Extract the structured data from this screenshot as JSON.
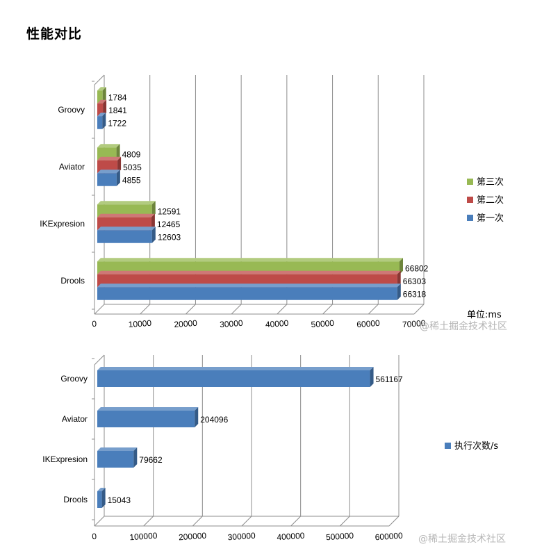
{
  "page": {
    "title": "性能对比"
  },
  "watermark": "@稀土掘金技术社区",
  "colors": {
    "blue": "#4a7ebb",
    "red": "#be4b48",
    "green": "#98b954",
    "grid": "#8c8c8c"
  },
  "chart_data": [
    {
      "type": "bar",
      "orientation": "horizontal",
      "style": "3d",
      "unit_label": "单位:ms",
      "categories": [
        "Groovy",
        "Aviator",
        "IKExpresion",
        "Drools"
      ],
      "series": [
        {
          "name": "第一次",
          "color": "#4a7ebb",
          "values": [
            1722,
            4855,
            12603,
            66318
          ]
        },
        {
          "name": "第二次",
          "color": "#be4b48",
          "values": [
            1841,
            5035,
            12465,
            66303
          ]
        },
        {
          "name": "第三次",
          "color": "#98b954",
          "values": [
            1784,
            4809,
            12591,
            66802
          ]
        }
      ],
      "xlim": [
        0,
        70000
      ],
      "xticks": [
        "0",
        "10000",
        "20000",
        "30000",
        "40000",
        "50000",
        "60000",
        "70000"
      ],
      "legend_position": "right",
      "grid": true
    },
    {
      "type": "bar",
      "orientation": "horizontal",
      "style": "3d",
      "categories": [
        "Groovy",
        "Aviator",
        "IKExpresion",
        "Drools"
      ],
      "series": [
        {
          "name": "执行次数/s",
          "color": "#4a7ebb",
          "values": [
            561167,
            204096,
            79662,
            15043
          ]
        }
      ],
      "xlim": [
        0,
        600000
      ],
      "xticks": [
        "0",
        "100000",
        "200000",
        "300000",
        "400000",
        "500000",
        "600000"
      ],
      "legend_position": "right",
      "grid": true
    }
  ]
}
